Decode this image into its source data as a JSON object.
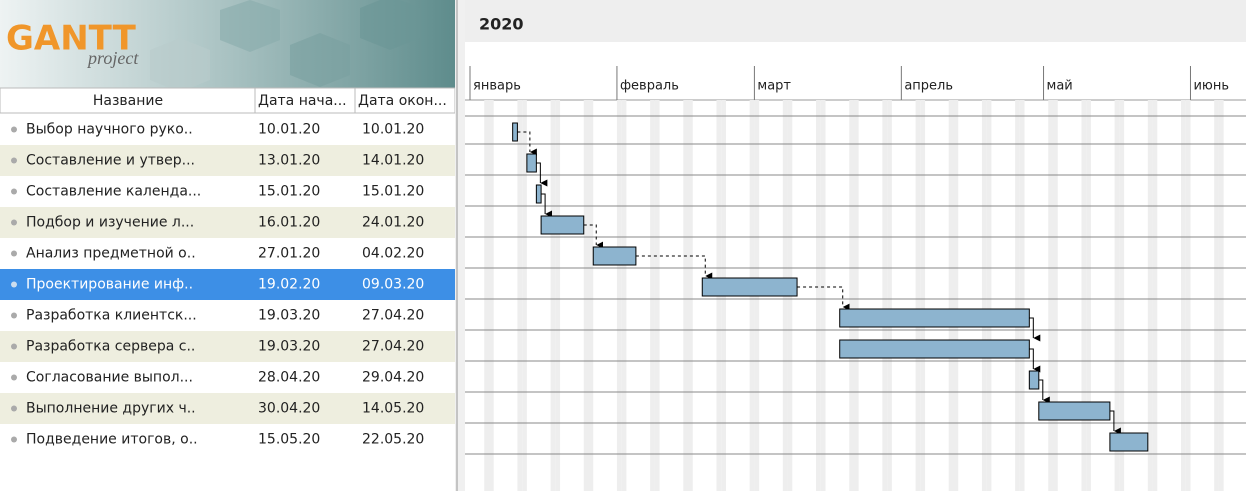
{
  "logo": {
    "title": "GANTT",
    "subtitle": "project"
  },
  "table": {
    "columns": [
      "Название",
      "Дата нача...",
      "Дата окон..."
    ],
    "rows": [
      [
        "Выбор научного руко..",
        "10.01.20",
        "10.01.20"
      ],
      [
        "Составление и утвер...",
        "13.01.20",
        "14.01.20"
      ],
      [
        "Составление календа...",
        "15.01.20",
        "15.01.20"
      ],
      [
        "Подбор и изучение л...",
        "16.01.20",
        "24.01.20"
      ],
      [
        "Анализ предметной о..",
        "27.01.20",
        "04.02.20"
      ],
      [
        "Проектирование инф..",
        "19.02.20",
        "09.03.20"
      ],
      [
        "Разработка клиентск...",
        "19.03.20",
        "27.04.20"
      ],
      [
        "Разработка сервера с..",
        "19.03.20",
        "27.04.20"
      ],
      [
        "Согласование выпол...",
        "28.04.20",
        "29.04.20"
      ],
      [
        "Выполнение других ч..",
        "30.04.20",
        "14.05.20"
      ],
      [
        "Подведение итогов, о..",
        "15.05.20",
        "22.05.20"
      ]
    ],
    "selected_row": 5
  },
  "timeline": {
    "year": "2020",
    "months": [
      "январь",
      "февраль",
      "март",
      "апрель",
      "май",
      "июнь"
    ]
  }
}
